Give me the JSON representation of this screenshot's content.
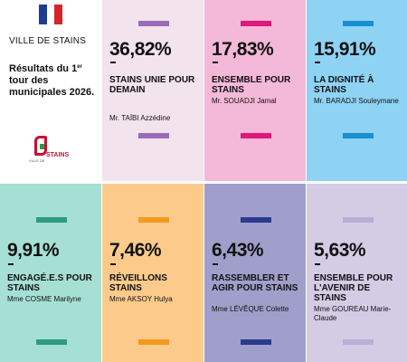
{
  "header": {
    "city": "VILLE DE STAINS",
    "title_part1": "Résultats du 1",
    "title_sup": "er",
    "title_part2": " tour des municipales 2026.",
    "flag_colors": [
      "#1f3c8f",
      "#ffffff",
      "#d8232a"
    ],
    "logo_small_text": "VILLE DE",
    "logo_text": "STAINS"
  },
  "results": [
    {
      "percent": "36,82%",
      "dash": "-",
      "list": "STAINS UNIE POUR DEMAIN",
      "candidate": "Mr. TAÏBI Azzédine",
      "bg": "#f3e3ec",
      "accent": "#9a6cb8"
    },
    {
      "percent": "17,83%",
      "dash": "-",
      "list": "ENSEMBLE POUR STAINS",
      "candidate": "Mr. SOUADJI Jamal",
      "bg": "#f4b8d8",
      "accent": "#e0187a"
    },
    {
      "percent": "15,91%",
      "dash": "-",
      "list": "LA DIGNITÉ À STAINS",
      "candidate": "Mr. BARADJI Souleymane",
      "bg": "#8fd3f4",
      "accent": "#1a8fd2"
    },
    {
      "percent": "9,91%",
      "dash": "-",
      "list": "ENGAGÉ.E.S POUR STAINS",
      "candidate": "Mme COSME Marilyne",
      "bg": "#a6e0d4",
      "accent": "#2e9a80"
    },
    {
      "percent": "7,46%",
      "dash": "-",
      "list": "RÉVEILLONS STAINS",
      "candidate": "Mme AKSOY Hulya",
      "bg": "#fccb8c",
      "accent": "#f39a1e"
    },
    {
      "percent": "6,43%",
      "dash": "-",
      "list": "RASSEMBLER ET AGIR POUR STAINS",
      "candidate": "Mme LÉVÊQUE Colette",
      "bg": "#a09fcb",
      "accent": "#2a3b8f"
    },
    {
      "percent": "5,63%",
      "dash": "-",
      "list": "ENSEMBLE POUR L'AVENIR DE STAINS",
      "candidate": "Mme GOUREAU Marie-Claude",
      "bg": "#d4cbe5",
      "accent": "#b9aed6"
    }
  ]
}
